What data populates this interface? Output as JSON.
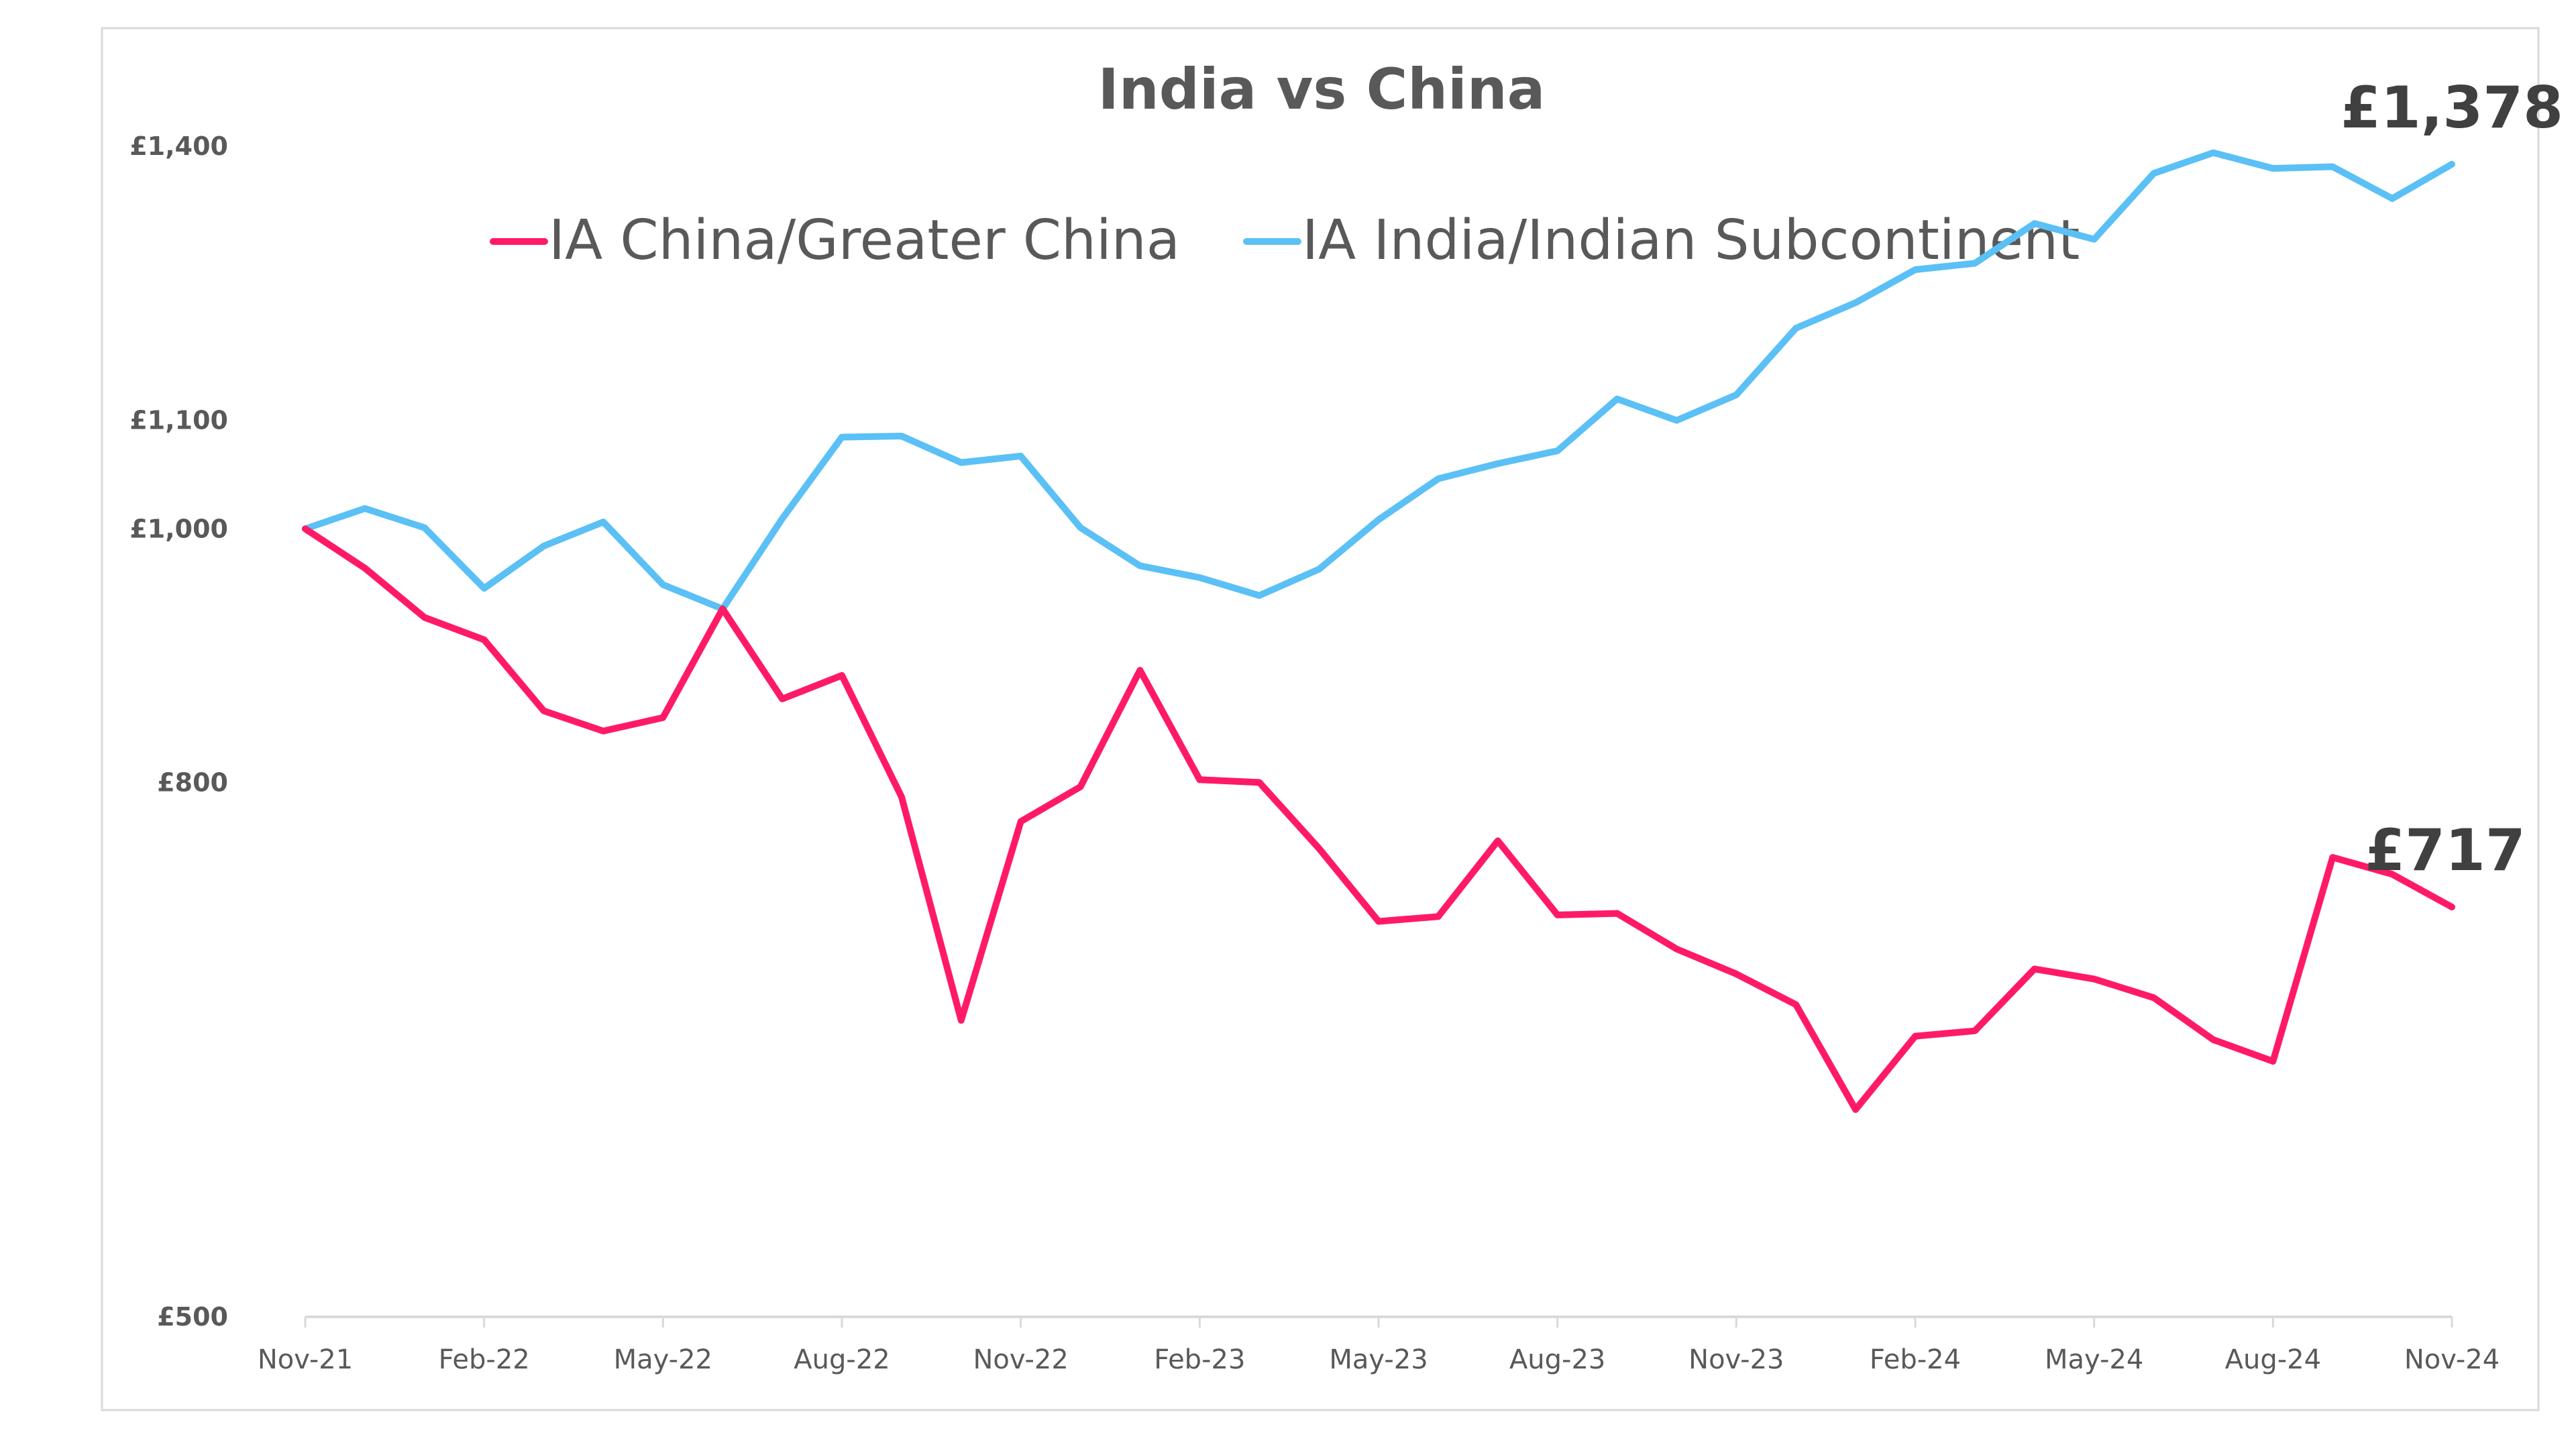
{
  "chart_data": {
    "type": "line",
    "title": "India vs China",
    "xlabel": "",
    "ylabel": "",
    "y_scale": "log",
    "ylim": [
      500,
      1400
    ],
    "y_ticks": [
      500,
      800,
      1000,
      1100,
      1400
    ],
    "y_tick_labels": [
      "£500",
      "£800",
      "£1,000",
      "£1,100",
      "£1,400"
    ],
    "x_tick_labels": [
      "Nov-21",
      "Feb-22",
      "May-22",
      "Aug-22",
      "Nov-22",
      "Feb-23",
      "May-23",
      "Aug-23",
      "Nov-23",
      "Feb-24",
      "May-24",
      "Aug-24",
      "Nov-24"
    ],
    "categories": [
      "Nov-21",
      "Dec-21",
      "Jan-22",
      "Feb-22",
      "Mar-22",
      "Apr-22",
      "May-22",
      "Jun-22",
      "Jul-22",
      "Aug-22",
      "Sep-22",
      "Oct-22",
      "Nov-22",
      "Dec-22",
      "Jan-23",
      "Feb-23",
      "Mar-23",
      "Apr-23",
      "May-23",
      "Jun-23",
      "Jul-23",
      "Aug-23",
      "Sep-23",
      "Oct-23",
      "Nov-23",
      "Dec-23",
      "Jan-24",
      "Feb-24",
      "Mar-24",
      "Apr-24",
      "May-24",
      "Jun-24",
      "Jul-24",
      "Aug-24",
      "Sep-24",
      "Oct-24",
      "Nov-24"
    ],
    "legend_position": "top",
    "grid": false,
    "series": [
      {
        "name": "IA China/Greater China",
        "color": "#ff1a66",
        "values": [
          1000,
          966,
          925,
          907,
          852,
          837,
          847,
          932,
          861,
          879,
          790,
          649,
          773,
          797,
          883,
          802,
          800,
          755,
          708,
          711,
          760,
          712,
          713,
          691,
          676,
          658,
          600,
          640,
          643,
          679,
          673,
          662,
          638,
          626,
          749,
          738,
          717
        ],
        "end_label": "£717"
      },
      {
        "name": "IA India/Indian Subcontinent",
        "color": "#5bc0f5",
        "values": [
          1000,
          1018,
          1001,
          949,
          985,
          1006,
          952,
          932,
          1009,
          1084,
          1085,
          1060,
          1066,
          1001,
          968,
          958,
          943,
          965,
          1008,
          1045,
          1059,
          1071,
          1121,
          1100,
          1125,
          1193,
          1220,
          1256,
          1263,
          1308,
          1290,
          1367,
          1392,
          1373,
          1375,
          1337,
          1378
        ],
        "end_label": "£1,378"
      }
    ]
  }
}
